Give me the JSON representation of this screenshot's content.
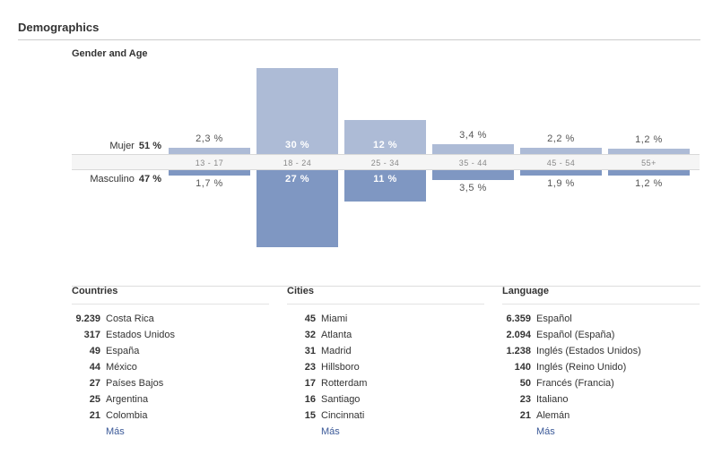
{
  "header": {
    "title": "Demographics"
  },
  "chart_data": {
    "type": "bar",
    "title": "Gender and Age",
    "categories": [
      "13-17",
      "18-24",
      "25-34",
      "35-44",
      "45-54",
      "55+"
    ],
    "series": [
      {
        "name": "Mujer",
        "total_label": "51 %",
        "values": [
          2.3,
          30,
          12,
          3.4,
          2.2,
          1.2
        ],
        "labels": [
          "2,3 %",
          "30 %",
          "12 %",
          "3,4 %",
          "2,2 %",
          "1,2 %"
        ]
      },
      {
        "name": "Masculino",
        "total_label": "47 %",
        "values": [
          1.7,
          27,
          11,
          3.5,
          1.9,
          1.2
        ],
        "labels": [
          "1,7 %",
          "27 %",
          "11 %",
          "3,5 %",
          "1,9 %",
          "1,2 %"
        ]
      }
    ],
    "colors": {
      "female": "#adbbd6",
      "male": "#7f97c2"
    }
  },
  "countries": {
    "title": "Countries",
    "items": [
      {
        "count": "9.239",
        "name": "Costa Rica"
      },
      {
        "count": "317",
        "name": "Estados Unidos"
      },
      {
        "count": "49",
        "name": "España"
      },
      {
        "count": "44",
        "name": "México"
      },
      {
        "count": "27",
        "name": "Países Bajos"
      },
      {
        "count": "25",
        "name": "Argentina"
      },
      {
        "count": "21",
        "name": "Colombia"
      }
    ],
    "more": "Más"
  },
  "cities": {
    "title": "Cities",
    "items": [
      {
        "count": "45",
        "name": "Miami"
      },
      {
        "count": "32",
        "name": "Atlanta"
      },
      {
        "count": "31",
        "name": "Madrid"
      },
      {
        "count": "23",
        "name": "Hillsboro"
      },
      {
        "count": "17",
        "name": "Rotterdam"
      },
      {
        "count": "16",
        "name": "Santiago"
      },
      {
        "count": "15",
        "name": "Cincinnati"
      }
    ],
    "more": "Más"
  },
  "language": {
    "title": "Language",
    "items": [
      {
        "count": "6.359",
        "name": "Español"
      },
      {
        "count": "2.094",
        "name": "Español (España)"
      },
      {
        "count": "1.238",
        "name": "Inglés (Estados Unidos)"
      },
      {
        "count": "140",
        "name": "Inglés (Reino Unido)"
      },
      {
        "count": "50",
        "name": "Francés (Francia)"
      },
      {
        "count": "23",
        "name": "Italiano"
      },
      {
        "count": "21",
        "name": "Alemán"
      }
    ],
    "more": "Más"
  }
}
